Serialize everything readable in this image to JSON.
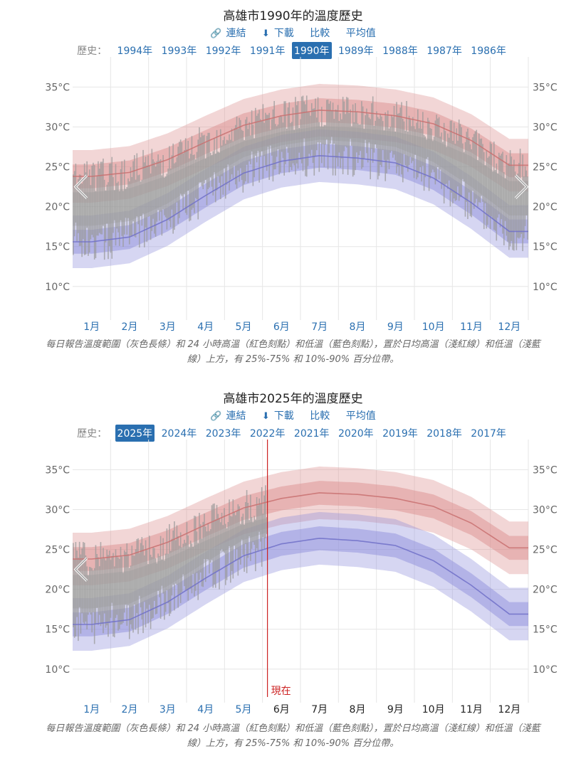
{
  "section1": {
    "title": "高雄市1990年的溫度歷史",
    "links": {
      "link": "連結",
      "download": "下載",
      "compare": "比較",
      "average": "平均值"
    },
    "history_label": "歷史：",
    "years": [
      "1994年",
      "1993年",
      "1992年",
      "1991年",
      "1990年",
      "1989年",
      "1988年",
      "1987年",
      "1986年"
    ],
    "selected_year": "1990年",
    "caption": "每日報告溫度範圍（灰色長條）和 24 小時高溫（紅色刻點）和低溫（藍色刻點），置於日均高溫（淺紅線）和低溫（淺藍線）上方，有 25%-75% 和 10%-90% 百分位帶。"
  },
  "section2": {
    "title": "高雄市2025年的溫度歷史",
    "links": {
      "link": "連結",
      "download": "下載",
      "compare": "比較",
      "average": "平均值"
    },
    "history_label": "歷史：",
    "years": [
      "2025年",
      "2024年",
      "2023年",
      "2022年",
      "2021年",
      "2020年",
      "2019年",
      "2018年",
      "2017年"
    ],
    "selected_year": "2025年",
    "now_label": "現在",
    "caption": "每日報告溫度範圍（灰色長條）和 24 小時高溫（紅色刻點）和低溫（藍色刻點），置於日均高溫（淺紅線）和低溫（淺藍線）上方，有 25%-75% 和 10%-90% 百分位帶。"
  },
  "icons": {
    "link": "link-icon",
    "download": "download-icon",
    "prev": "chevron-left-icon",
    "next": "chevron-right-icon"
  },
  "colors": {
    "accent": "#2a6fb0",
    "high_band": "#d98a8a",
    "low_band": "#8a8ad9",
    "range_bar": "#999999",
    "now_line": "#cc2222"
  },
  "chart_data": [
    {
      "type": "area",
      "title": "高雄市1990年的溫度歷史",
      "categories": [
        "1月",
        "2月",
        "3月",
        "4月",
        "5月",
        "6月",
        "7月",
        "8月",
        "9月",
        "10月",
        "11月",
        "12月"
      ],
      "y_ticks": [
        10,
        15,
        20,
        25,
        30,
        35
      ],
      "y_tick_suffix": "°C",
      "ylim": [
        6.5,
        37
      ],
      "avg_high": [
        23.8,
        24.3,
        25.9,
        28.1,
        30.2,
        31.4,
        32.1,
        31.9,
        31.4,
        30.4,
        28.3,
        25.2
      ],
      "avg_low": [
        15.6,
        16.2,
        18.4,
        21.4,
        24.2,
        25.7,
        26.4,
        26.1,
        25.5,
        23.6,
        20.5,
        16.9
      ],
      "band_25_75": 1.5,
      "band_10_90": 3.3,
      "observed_until_month": 12,
      "now_month": null,
      "grid": true
    },
    {
      "type": "area",
      "title": "高雄市2025年的溫度歷史",
      "categories": [
        "1月",
        "2月",
        "3月",
        "4月",
        "5月",
        "6月",
        "7月",
        "8月",
        "9月",
        "10月",
        "11月",
        "12月"
      ],
      "y_ticks": [
        10,
        15,
        20,
        25,
        30,
        35
      ],
      "y_tick_suffix": "°C",
      "ylim": [
        6.5,
        37
      ],
      "avg_high": [
        23.8,
        24.3,
        25.9,
        28.1,
        30.2,
        31.4,
        32.1,
        31.9,
        31.4,
        30.4,
        28.3,
        25.2
      ],
      "avg_low": [
        15.6,
        16.2,
        18.4,
        21.4,
        24.2,
        25.7,
        26.4,
        26.1,
        25.5,
        23.6,
        20.5,
        16.9
      ],
      "band_25_75": 1.5,
      "band_10_90": 3.3,
      "observed_until_month": 5.13,
      "now_month": 5.13,
      "grid": true
    }
  ]
}
